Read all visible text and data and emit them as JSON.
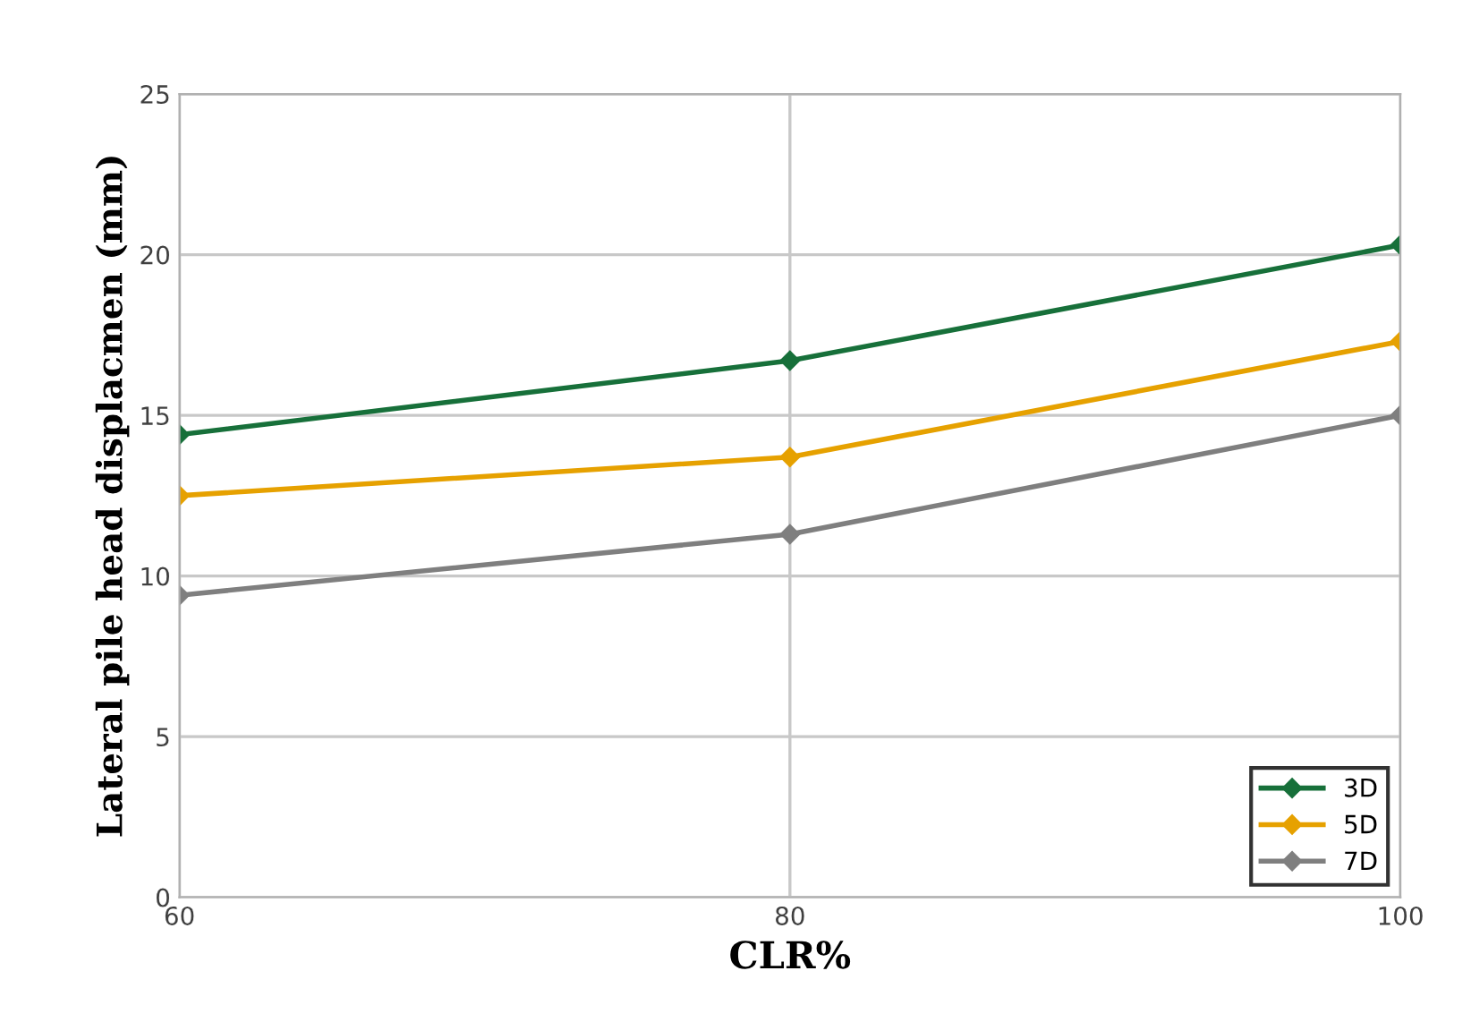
{
  "chart_data": {
    "type": "line",
    "xlabel": "CLR%",
    "ylabel": "Lateral pile head displacmen (mm)",
    "x": [
      60,
      80,
      100
    ],
    "series": [
      {
        "name": "3D",
        "color": "#17703a",
        "values": [
          14.4,
          16.7,
          20.3
        ]
      },
      {
        "name": "5D",
        "color": "#e6a100",
        "values": [
          12.5,
          13.7,
          17.3
        ]
      },
      {
        "name": "7D",
        "color": "#7f7f7f",
        "values": [
          9.4,
          11.3,
          15.0
        ]
      }
    ],
    "xlim": [
      60,
      100
    ],
    "xticks": [
      60,
      80,
      100
    ],
    "ylim": [
      0,
      25
    ],
    "yticks": [
      0,
      5,
      10,
      15,
      20,
      25
    ],
    "grid": true,
    "legend": "bottom right",
    "marker": "diamond",
    "line_style": "solid"
  }
}
